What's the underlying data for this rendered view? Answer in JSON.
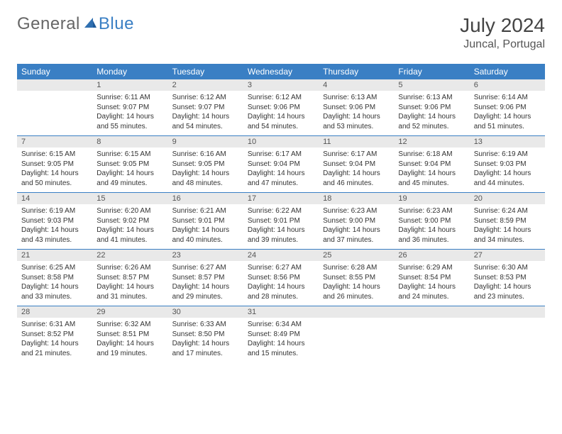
{
  "brand": {
    "part1": "General",
    "part2": "Blue"
  },
  "title": "July 2024",
  "location": "Juncal, Portugal",
  "colors": {
    "header_bg": "#3a7fc4",
    "header_text": "#ffffff",
    "daynum_bg": "#e9e9e9",
    "rule": "#3a7fc4",
    "body_bg": "#ffffff",
    "text": "#333333"
  },
  "weekdays": [
    "Sunday",
    "Monday",
    "Tuesday",
    "Wednesday",
    "Thursday",
    "Friday",
    "Saturday"
  ],
  "weeks": [
    [
      {
        "n": "",
        "sr": "",
        "ss": "",
        "d1": "",
        "d2": ""
      },
      {
        "n": "1",
        "sr": "Sunrise: 6:11 AM",
        "ss": "Sunset: 9:07 PM",
        "d1": "Daylight: 14 hours",
        "d2": "and 55 minutes."
      },
      {
        "n": "2",
        "sr": "Sunrise: 6:12 AM",
        "ss": "Sunset: 9:07 PM",
        "d1": "Daylight: 14 hours",
        "d2": "and 54 minutes."
      },
      {
        "n": "3",
        "sr": "Sunrise: 6:12 AM",
        "ss": "Sunset: 9:06 PM",
        "d1": "Daylight: 14 hours",
        "d2": "and 54 minutes."
      },
      {
        "n": "4",
        "sr": "Sunrise: 6:13 AM",
        "ss": "Sunset: 9:06 PM",
        "d1": "Daylight: 14 hours",
        "d2": "and 53 minutes."
      },
      {
        "n": "5",
        "sr": "Sunrise: 6:13 AM",
        "ss": "Sunset: 9:06 PM",
        "d1": "Daylight: 14 hours",
        "d2": "and 52 minutes."
      },
      {
        "n": "6",
        "sr": "Sunrise: 6:14 AM",
        "ss": "Sunset: 9:06 PM",
        "d1": "Daylight: 14 hours",
        "d2": "and 51 minutes."
      }
    ],
    [
      {
        "n": "7",
        "sr": "Sunrise: 6:15 AM",
        "ss": "Sunset: 9:05 PM",
        "d1": "Daylight: 14 hours",
        "d2": "and 50 minutes."
      },
      {
        "n": "8",
        "sr": "Sunrise: 6:15 AM",
        "ss": "Sunset: 9:05 PM",
        "d1": "Daylight: 14 hours",
        "d2": "and 49 minutes."
      },
      {
        "n": "9",
        "sr": "Sunrise: 6:16 AM",
        "ss": "Sunset: 9:05 PM",
        "d1": "Daylight: 14 hours",
        "d2": "and 48 minutes."
      },
      {
        "n": "10",
        "sr": "Sunrise: 6:17 AM",
        "ss": "Sunset: 9:04 PM",
        "d1": "Daylight: 14 hours",
        "d2": "and 47 minutes."
      },
      {
        "n": "11",
        "sr": "Sunrise: 6:17 AM",
        "ss": "Sunset: 9:04 PM",
        "d1": "Daylight: 14 hours",
        "d2": "and 46 minutes."
      },
      {
        "n": "12",
        "sr": "Sunrise: 6:18 AM",
        "ss": "Sunset: 9:04 PM",
        "d1": "Daylight: 14 hours",
        "d2": "and 45 minutes."
      },
      {
        "n": "13",
        "sr": "Sunrise: 6:19 AM",
        "ss": "Sunset: 9:03 PM",
        "d1": "Daylight: 14 hours",
        "d2": "and 44 minutes."
      }
    ],
    [
      {
        "n": "14",
        "sr": "Sunrise: 6:19 AM",
        "ss": "Sunset: 9:03 PM",
        "d1": "Daylight: 14 hours",
        "d2": "and 43 minutes."
      },
      {
        "n": "15",
        "sr": "Sunrise: 6:20 AM",
        "ss": "Sunset: 9:02 PM",
        "d1": "Daylight: 14 hours",
        "d2": "and 41 minutes."
      },
      {
        "n": "16",
        "sr": "Sunrise: 6:21 AM",
        "ss": "Sunset: 9:01 PM",
        "d1": "Daylight: 14 hours",
        "d2": "and 40 minutes."
      },
      {
        "n": "17",
        "sr": "Sunrise: 6:22 AM",
        "ss": "Sunset: 9:01 PM",
        "d1": "Daylight: 14 hours",
        "d2": "and 39 minutes."
      },
      {
        "n": "18",
        "sr": "Sunrise: 6:23 AM",
        "ss": "Sunset: 9:00 PM",
        "d1": "Daylight: 14 hours",
        "d2": "and 37 minutes."
      },
      {
        "n": "19",
        "sr": "Sunrise: 6:23 AM",
        "ss": "Sunset: 9:00 PM",
        "d1": "Daylight: 14 hours",
        "d2": "and 36 minutes."
      },
      {
        "n": "20",
        "sr": "Sunrise: 6:24 AM",
        "ss": "Sunset: 8:59 PM",
        "d1": "Daylight: 14 hours",
        "d2": "and 34 minutes."
      }
    ],
    [
      {
        "n": "21",
        "sr": "Sunrise: 6:25 AM",
        "ss": "Sunset: 8:58 PM",
        "d1": "Daylight: 14 hours",
        "d2": "and 33 minutes."
      },
      {
        "n": "22",
        "sr": "Sunrise: 6:26 AM",
        "ss": "Sunset: 8:57 PM",
        "d1": "Daylight: 14 hours",
        "d2": "and 31 minutes."
      },
      {
        "n": "23",
        "sr": "Sunrise: 6:27 AM",
        "ss": "Sunset: 8:57 PM",
        "d1": "Daylight: 14 hours",
        "d2": "and 29 minutes."
      },
      {
        "n": "24",
        "sr": "Sunrise: 6:27 AM",
        "ss": "Sunset: 8:56 PM",
        "d1": "Daylight: 14 hours",
        "d2": "and 28 minutes."
      },
      {
        "n": "25",
        "sr": "Sunrise: 6:28 AM",
        "ss": "Sunset: 8:55 PM",
        "d1": "Daylight: 14 hours",
        "d2": "and 26 minutes."
      },
      {
        "n": "26",
        "sr": "Sunrise: 6:29 AM",
        "ss": "Sunset: 8:54 PM",
        "d1": "Daylight: 14 hours",
        "d2": "and 24 minutes."
      },
      {
        "n": "27",
        "sr": "Sunrise: 6:30 AM",
        "ss": "Sunset: 8:53 PM",
        "d1": "Daylight: 14 hours",
        "d2": "and 23 minutes."
      }
    ],
    [
      {
        "n": "28",
        "sr": "Sunrise: 6:31 AM",
        "ss": "Sunset: 8:52 PM",
        "d1": "Daylight: 14 hours",
        "d2": "and 21 minutes."
      },
      {
        "n": "29",
        "sr": "Sunrise: 6:32 AM",
        "ss": "Sunset: 8:51 PM",
        "d1": "Daylight: 14 hours",
        "d2": "and 19 minutes."
      },
      {
        "n": "30",
        "sr": "Sunrise: 6:33 AM",
        "ss": "Sunset: 8:50 PM",
        "d1": "Daylight: 14 hours",
        "d2": "and 17 minutes."
      },
      {
        "n": "31",
        "sr": "Sunrise: 6:34 AM",
        "ss": "Sunset: 8:49 PM",
        "d1": "Daylight: 14 hours",
        "d2": "and 15 minutes."
      },
      {
        "n": "",
        "sr": "",
        "ss": "",
        "d1": "",
        "d2": ""
      },
      {
        "n": "",
        "sr": "",
        "ss": "",
        "d1": "",
        "d2": ""
      },
      {
        "n": "",
        "sr": "",
        "ss": "",
        "d1": "",
        "d2": ""
      }
    ]
  ]
}
